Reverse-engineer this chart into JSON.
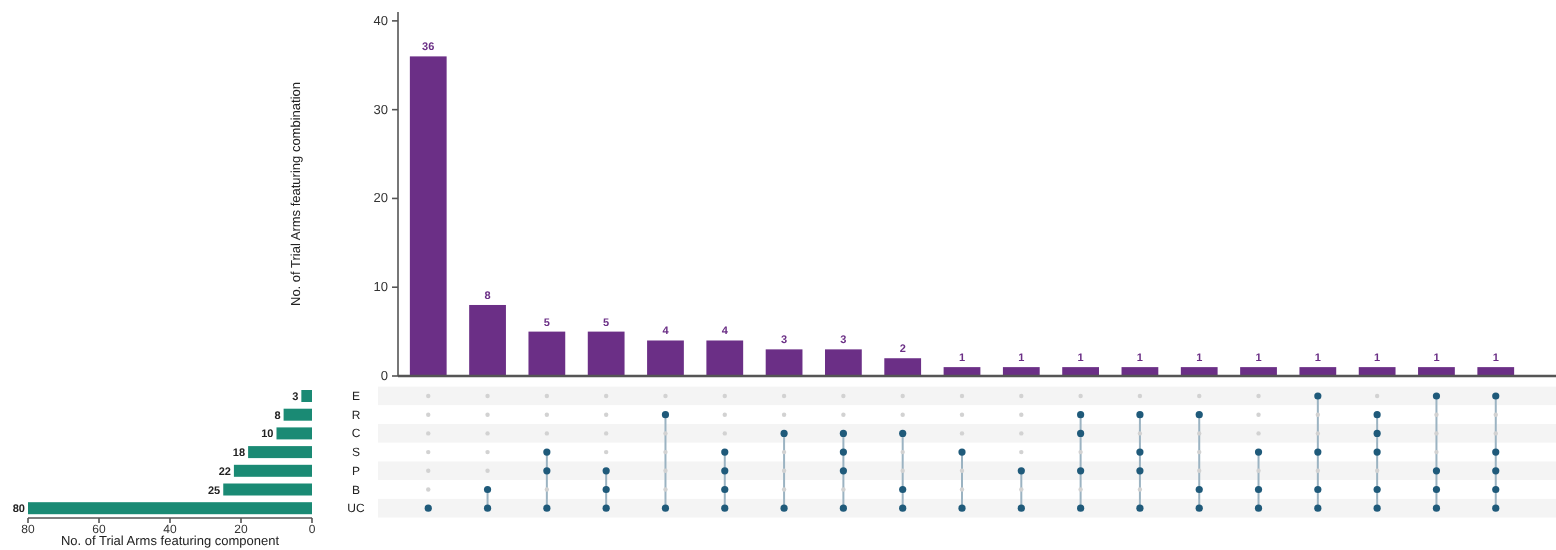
{
  "chart_data": [
    {
      "type": "bar",
      "ylabel": "No. of Trial Arms featuring combination",
      "categories": [
        null,
        null,
        null,
        null,
        null,
        null,
        null,
        null,
        null,
        null,
        null,
        null,
        null,
        null,
        null,
        null,
        null,
        null,
        null
      ],
      "values": [
        36,
        8,
        5,
        5,
        4,
        4,
        3,
        3,
        2,
        1,
        1,
        1,
        1,
        1,
        1,
        1,
        1,
        1,
        1
      ],
      "color": "#6b2f86",
      "ylim": [
        0,
        41
      ],
      "yticks": [
        0,
        10,
        20,
        30,
        40
      ],
      "data_labels": true,
      "tick_labels": "y"
    },
    {
      "type": "bar",
      "orientation": "horizontal",
      "xlabel": "No. of Trial Arms featuring component",
      "categories": [
        "E",
        "R",
        "C",
        "S",
        "P",
        "B",
        "UC"
      ],
      "values": [
        3,
        8,
        10,
        18,
        22,
        25,
        80
      ],
      "color": "#1a8a74",
      "xlim": [
        80,
        0
      ],
      "xticks": [
        80,
        60,
        40,
        20,
        0
      ],
      "data_labels": true
    }
  ]
}
